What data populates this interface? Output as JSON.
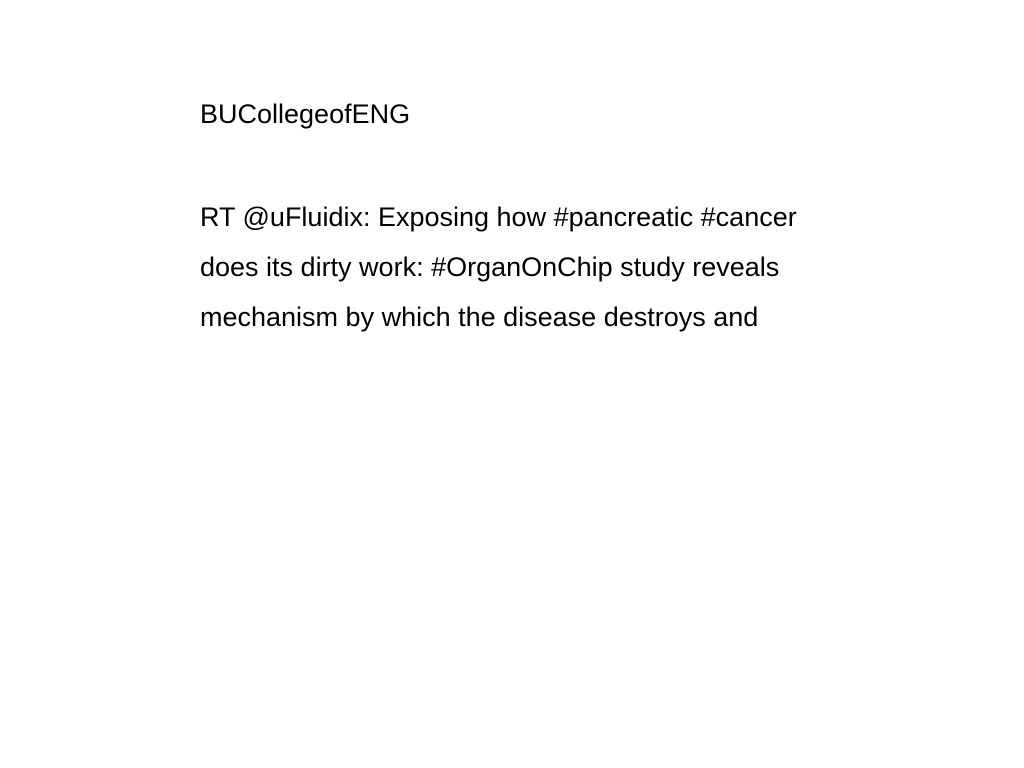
{
  "document": {
    "author": "BUCollegeofENG",
    "tweet_lines": [
      "RT @uFluidix: Exposing how #pancreatic #cancer",
      "does its dirty work: #OrganOnChip study reveals",
      "mechanism by which the disease destroys and"
    ]
  }
}
